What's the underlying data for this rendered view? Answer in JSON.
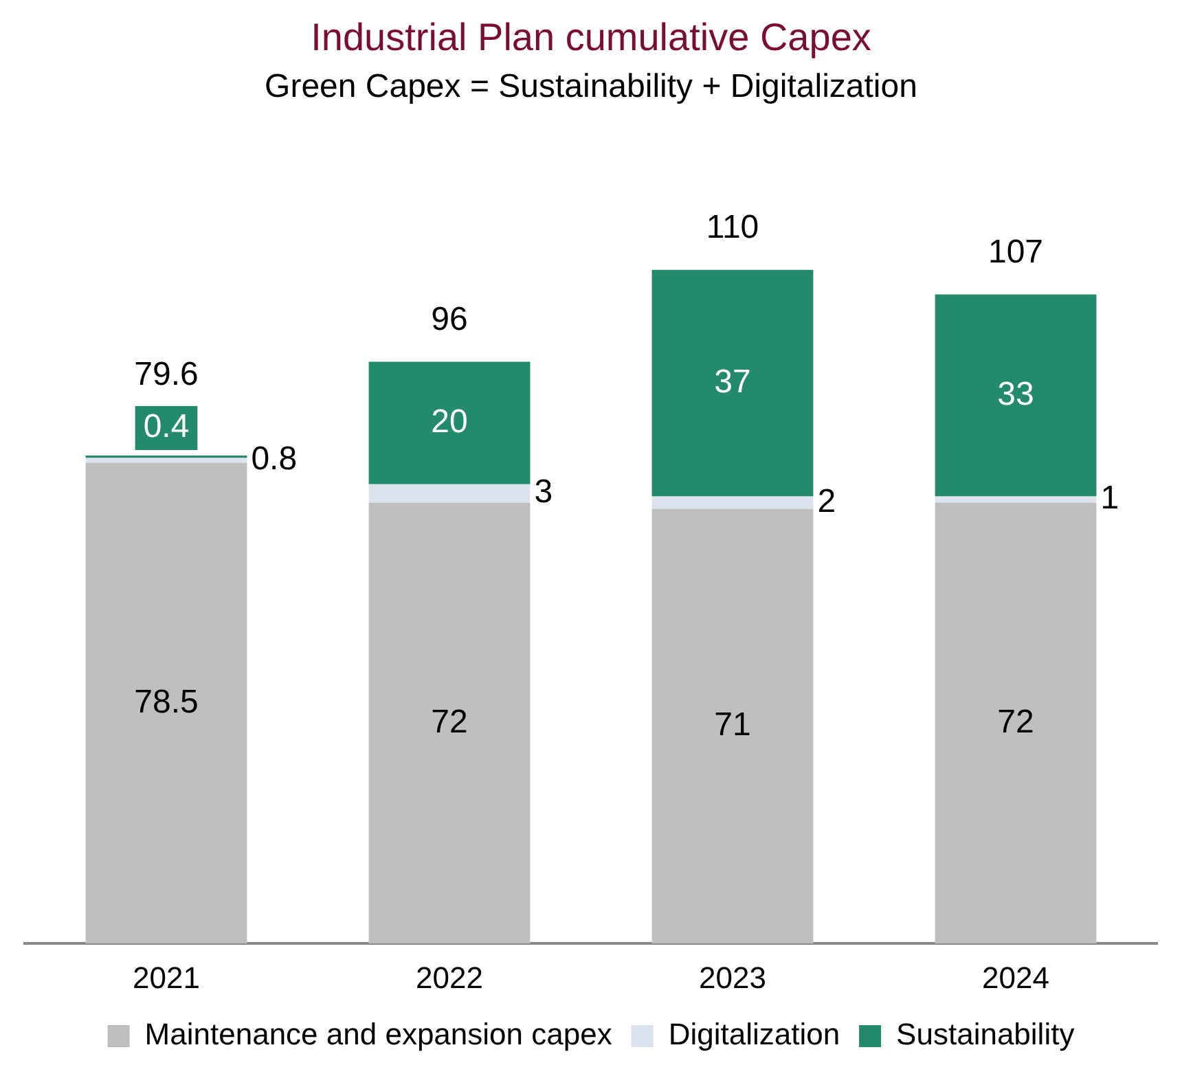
{
  "chart_data": {
    "type": "bar",
    "title": "Industrial Plan cumulative Capex",
    "subtitle": "Green Capex = Sustainability + Digitalization",
    "categories": [
      "2021",
      "2022",
      "2023",
      "2024"
    ],
    "series": [
      {
        "name": "Maintenance and expansion capex",
        "color": "#bfbfbf",
        "values": [
          78.5,
          72,
          71,
          72
        ]
      },
      {
        "name": "Digitalization",
        "color": "#dce3ee",
        "values": [
          0.8,
          3,
          2,
          1
        ]
      },
      {
        "name": "Sustainability",
        "color": "#248a6c",
        "values": [
          0.4,
          20,
          37,
          33
        ]
      }
    ],
    "stacked": true,
    "data_labels": true,
    "totals": [
      "79.6",
      "96",
      "110",
      "107"
    ],
    "grid": false,
    "legend": "bottom",
    "tick_labels": "x"
  }
}
